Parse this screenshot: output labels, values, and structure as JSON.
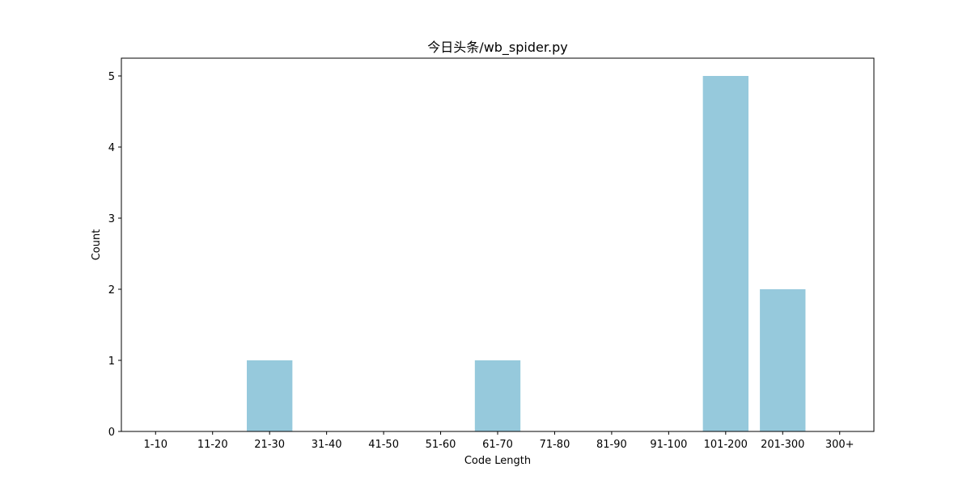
{
  "chart_data": {
    "type": "bar",
    "title": "今日头条/wb_spider.py",
    "xlabel": "Code Length",
    "ylabel": "Count",
    "categories": [
      "1-10",
      "11-20",
      "21-30",
      "31-40",
      "41-50",
      "51-60",
      "61-70",
      "71-80",
      "81-90",
      "91-100",
      "101-200",
      "201-300",
      "300+"
    ],
    "values": [
      0,
      0,
      1,
      0,
      0,
      0,
      1,
      0,
      0,
      0,
      5,
      2,
      0
    ],
    "ylim": [
      0,
      5.25
    ],
    "yticks": [
      0,
      1,
      2,
      3,
      4,
      5
    ],
    "bar_color": "#96c9dc",
    "grid": false,
    "legend": "none"
  }
}
